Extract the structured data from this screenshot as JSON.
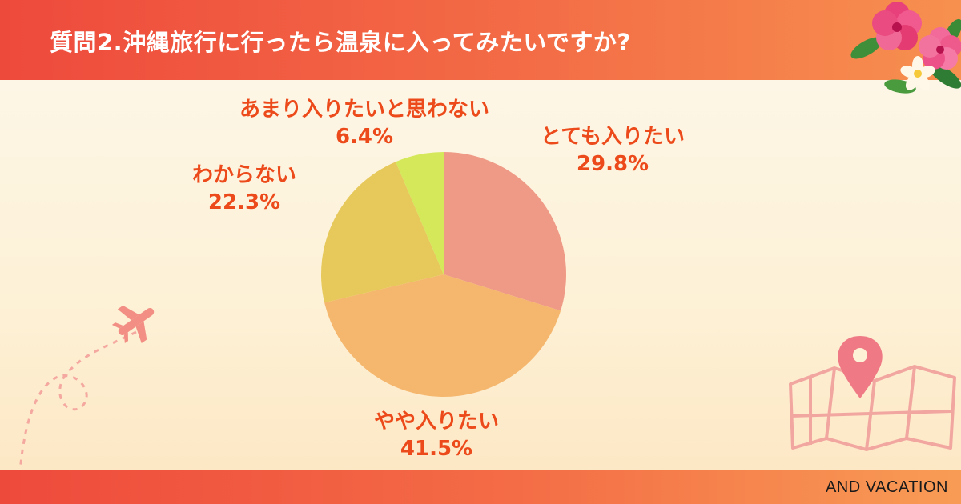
{
  "header": {
    "title": "質問2.沖縄旅行に行ったら温泉に入ってみたいですか?"
  },
  "footer": {
    "brand": "AND VACATION"
  },
  "colors": {
    "header_gradient": [
      "#ee4a3c",
      "#f7904f"
    ],
    "label_text": "#ec4a1a",
    "slices": [
      "#ef9a86",
      "#f5b76e",
      "#e6c95a",
      "#d4e85a"
    ]
  },
  "decorations": [
    "hibiscus-flower-icon",
    "airplane-icon",
    "map-pin-icon"
  ],
  "chart_data": {
    "type": "pie",
    "title": "質問2.沖縄旅行に行ったら温泉に入ってみたいですか?",
    "start_angle_deg": 0,
    "direction": "clockwise",
    "slices": [
      {
        "label": "とても入りたい",
        "value": 29.8,
        "display": "29.8%",
        "color": "#ef9a86"
      },
      {
        "label": "やや入りたい",
        "value": 41.5,
        "display": "41.5%",
        "color": "#f5b76e"
      },
      {
        "label": "わからない",
        "value": 22.3,
        "display": "22.3%",
        "color": "#e6c95a"
      },
      {
        "label": "あまり入りたいと思わない",
        "value": 6.4,
        "display": "6.4%",
        "color": "#d4e85a"
      }
    ]
  }
}
